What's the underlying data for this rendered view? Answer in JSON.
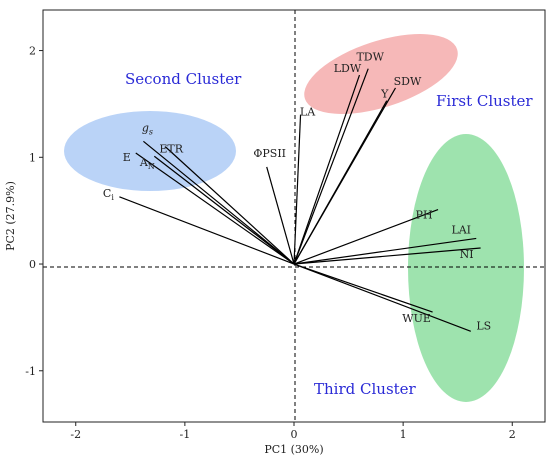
{
  "chart_data": {
    "type": "scatter",
    "subtype": "pca-biplot",
    "title": "",
    "xlabel": "PC1 (30%)",
    "ylabel": "PC2 (27.9%)",
    "xlim": [
      -2.3,
      2.3
    ],
    "ylim": [
      -1.48,
      2.38
    ],
    "xticks": [
      -2,
      -1,
      0,
      1,
      2
    ],
    "yticks": [
      -1,
      0,
      1,
      2
    ],
    "grid": false,
    "reference_lines": [
      {
        "axis": "x",
        "value": 0,
        "style": "dashed"
      },
      {
        "axis": "y",
        "value": 0,
        "style": "dashed"
      }
    ],
    "loadings": [
      {
        "label": "TDW",
        "x": 0.68,
        "y": 1.83
      },
      {
        "label": "LDW",
        "x": 0.6,
        "y": 1.77
      },
      {
        "label": "SDW",
        "x": 0.93,
        "y": 1.65
      },
      {
        "label": "Y",
        "x": 0.85,
        "y": 1.53
      },
      {
        "label": "LA",
        "x": 0.06,
        "y": 1.4
      },
      {
        "label": "ΦPSII",
        "x": -0.25,
        "y": 0.91
      },
      {
        "label": "gs",
        "x": -1.38,
        "y": 1.15
      },
      {
        "label": "ETR",
        "x": -1.18,
        "y": 1.1
      },
      {
        "label": "E",
        "x": -1.45,
        "y": 1.04
      },
      {
        "label": "AN",
        "x": -1.28,
        "y": 1.01
      },
      {
        "label": "Ci",
        "x": -1.6,
        "y": 0.63
      },
      {
        "label": "PH",
        "x": 1.32,
        "y": 0.51
      },
      {
        "label": "LAI",
        "x": 1.67,
        "y": 0.24
      },
      {
        "label": "NI",
        "x": 1.71,
        "y": 0.15
      },
      {
        "label": "WUE",
        "x": 1.27,
        "y": -0.45
      },
      {
        "label": "LS",
        "x": 1.62,
        "y": -0.63
      }
    ],
    "clusters": [
      {
        "name": "First Cluster",
        "color": "#f4a6a6",
        "members": [
          "TDW",
          "LDW",
          "SDW",
          "Y",
          "LA"
        ]
      },
      {
        "name": "Second Cluster",
        "color": "#a9c8f5",
        "members": [
          "gs",
          "ETR",
          "E",
          "AN",
          "Ci"
        ]
      },
      {
        "name": "Third Cluster",
        "color": "#86dc9a",
        "members": [
          "PH",
          "LAI",
          "NI",
          "WUE",
          "LS"
        ]
      }
    ]
  }
}
